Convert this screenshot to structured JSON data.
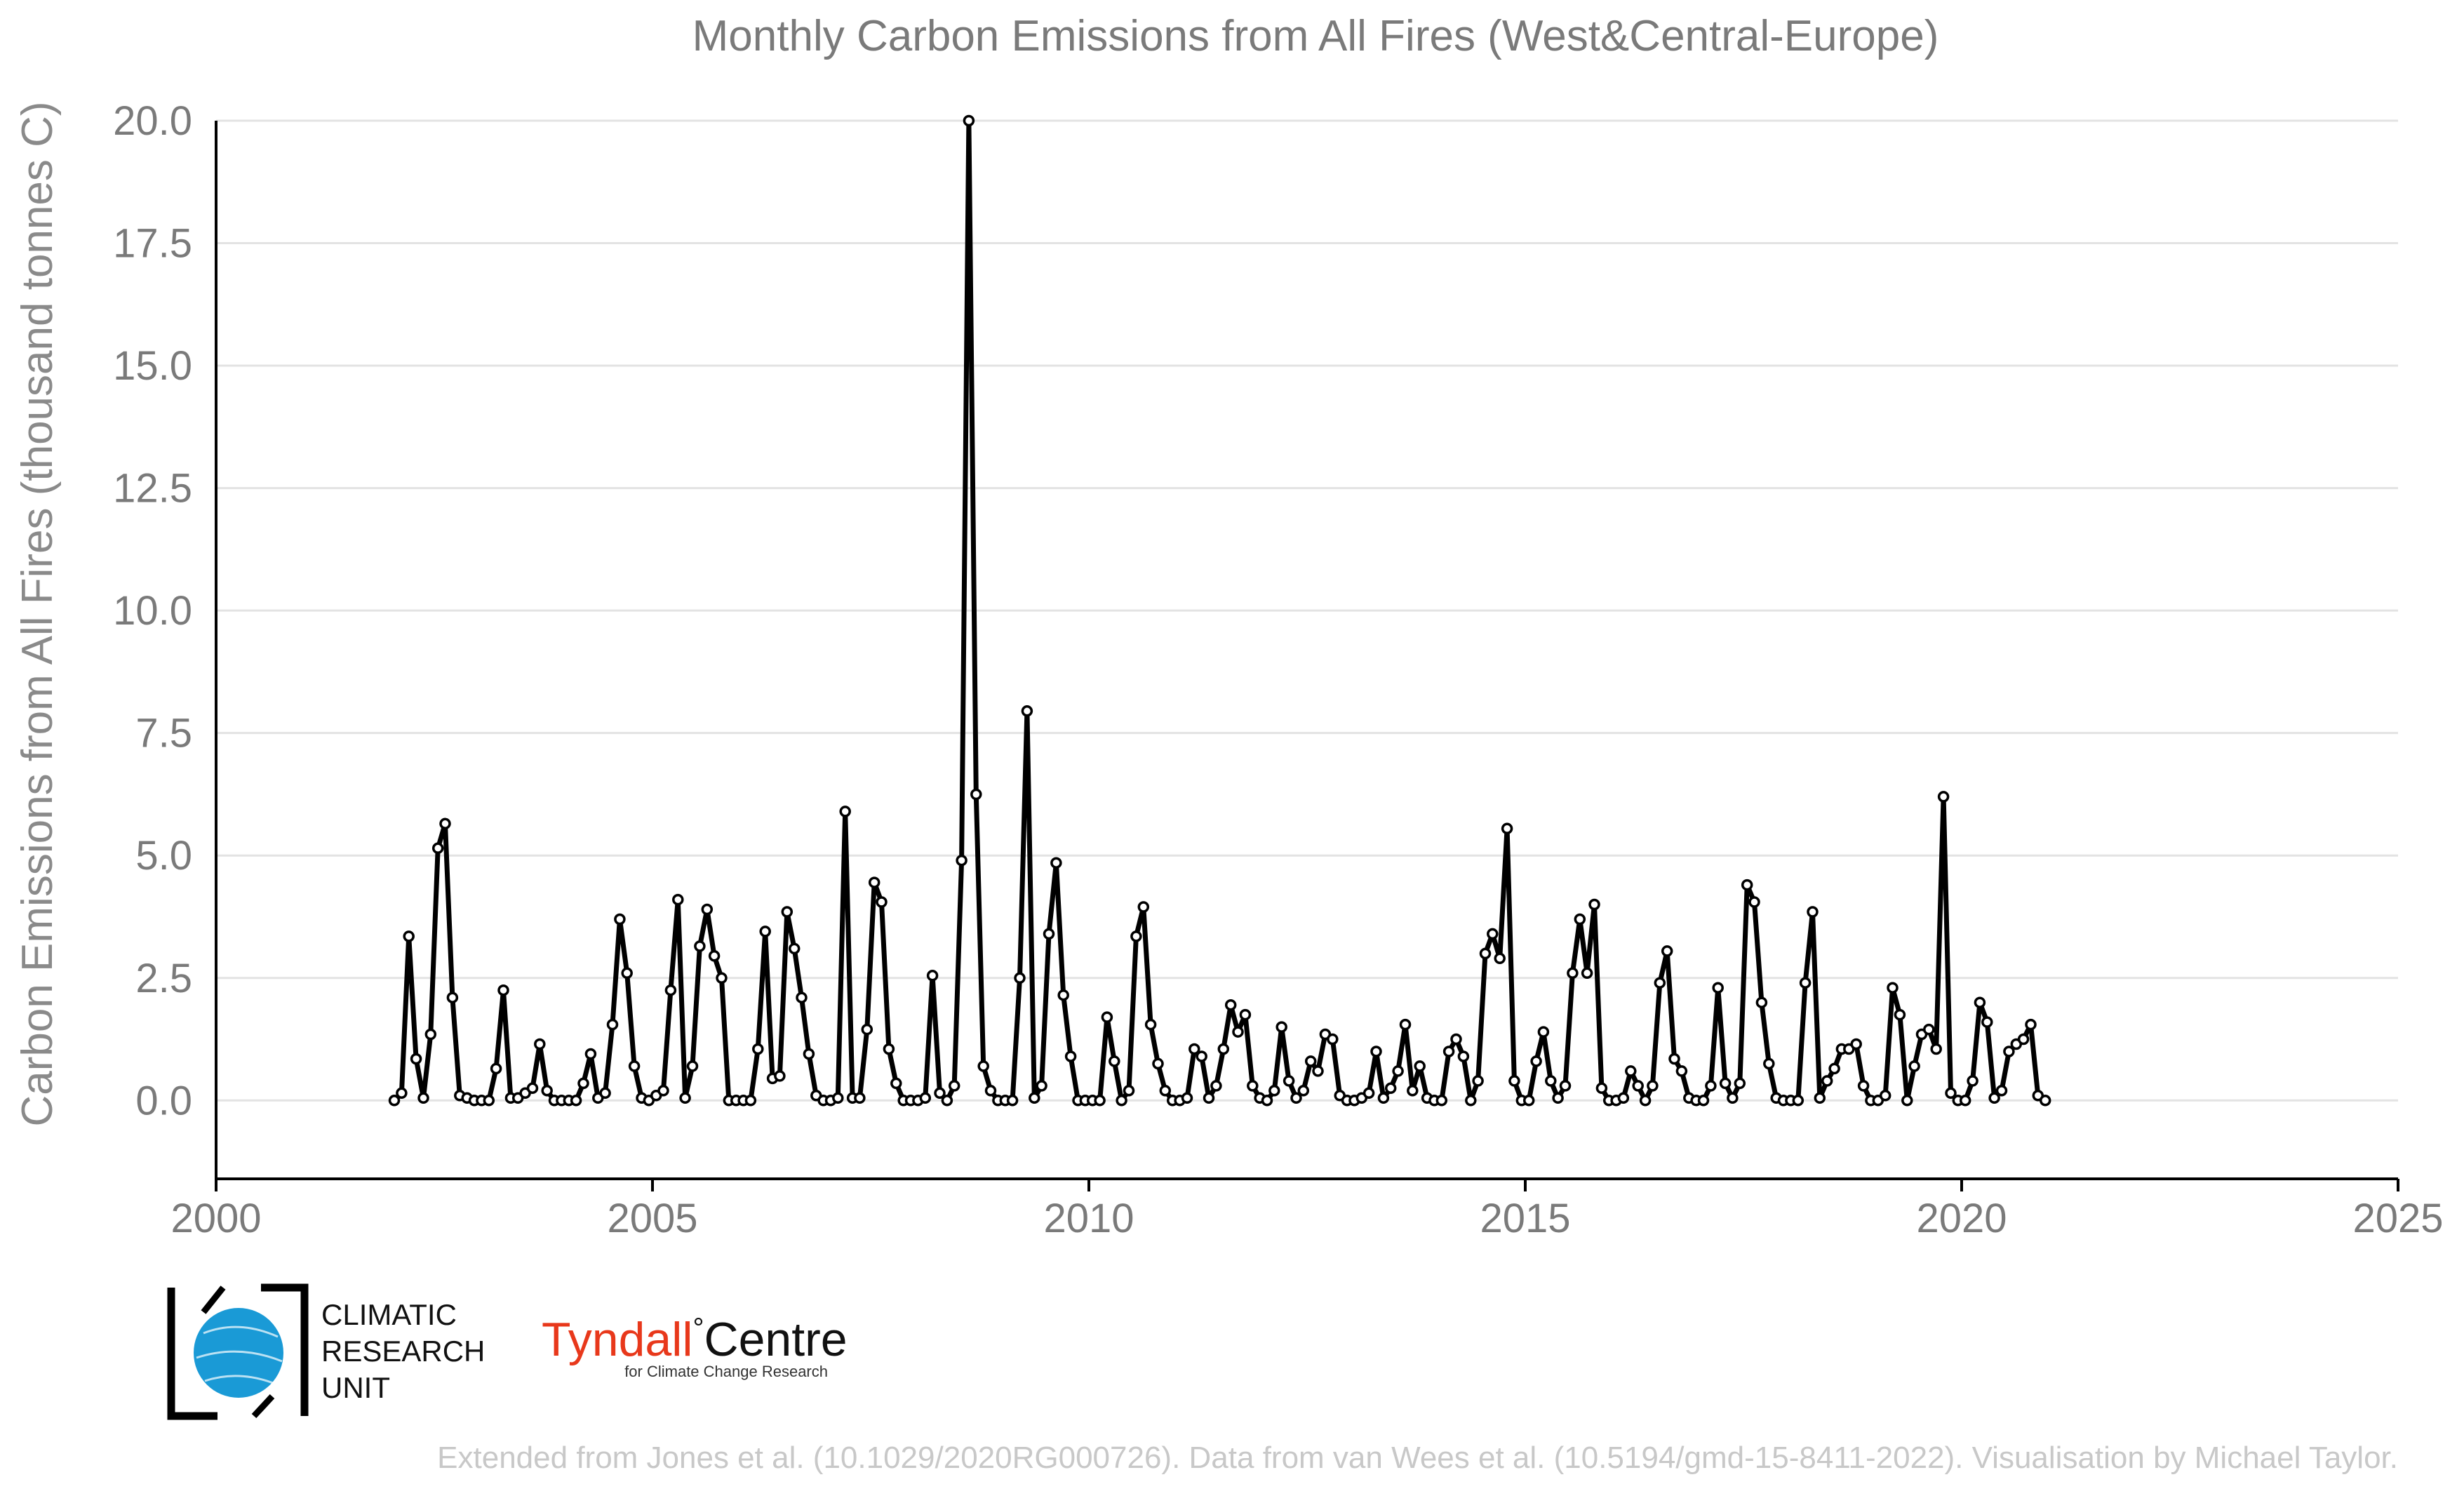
{
  "chart_data": {
    "type": "line",
    "title": "Monthly Carbon Emissions from All Fires (West&Central-Europe)",
    "xlabel": "",
    "ylabel": "Carbon Emissions from All Fires (thousand tonnes C)",
    "xlim": [
      2000,
      2025
    ],
    "ylim": [
      -1.6,
      20.0
    ],
    "x_ticks": [
      2000,
      2005,
      2010,
      2015,
      2020,
      2025
    ],
    "x_tick_labels": [
      "2000",
      "2005",
      "2010",
      "2015",
      "2020",
      "2025"
    ],
    "y_ticks": [
      0,
      2.5,
      5,
      7.5,
      10,
      12.5,
      15,
      17.5,
      20
    ],
    "y_tick_labels": [
      "0.0",
      "2.5",
      "5.0",
      "7.5",
      "10.0",
      "12.5",
      "15.0",
      "17.5",
      "20.0"
    ],
    "grid": "horizontal",
    "x_start": "2002-01",
    "x_step": "1 month",
    "series": [
      {
        "color": "#000000",
        "values": [
          0.0,
          0.15,
          3.35,
          0.85,
          0.05,
          1.35,
          5.15,
          5.65,
          2.1,
          0.1,
          0.05,
          0.0,
          0.0,
          0.0,
          0.65,
          2.25,
          0.05,
          0.05,
          0.15,
          0.25,
          1.15,
          0.2,
          0.0,
          0.0,
          0.0,
          0.0,
          0.35,
          0.95,
          0.05,
          0.15,
          1.55,
          3.7,
          2.6,
          0.7,
          0.05,
          0.0,
          0.1,
          0.2,
          2.25,
          4.1,
          0.05,
          0.7,
          3.15,
          3.9,
          2.95,
          2.5,
          0.0,
          0.0,
          0.0,
          0.0,
          1.05,
          3.45,
          0.45,
          0.5,
          3.85,
          3.1,
          2.1,
          0.95,
          0.1,
          0.0,
          0.0,
          0.05,
          5.9,
          0.05,
          0.05,
          1.45,
          4.45,
          4.05,
          1.05,
          0.35,
          0.0,
          0.0,
          0.0,
          0.05,
          2.55,
          0.15,
          0.0,
          0.3,
          4.9,
          20.0,
          6.25,
          0.7,
          0.2,
          0.0,
          0.0,
          0.0,
          2.5,
          7.95,
          0.05,
          0.3,
          3.4,
          4.85,
          2.15,
          0.9,
          0.0,
          0.0,
          0.0,
          0.0,
          1.7,
          0.8,
          0.0,
          0.2,
          3.35,
          3.95,
          1.55,
          0.75,
          0.2,
          0.0,
          0.0,
          0.05,
          1.05,
          0.9,
          0.05,
          0.3,
          1.05,
          1.95,
          1.4,
          1.75,
          0.3,
          0.05,
          0.0,
          0.2,
          1.5,
          0.4,
          0.05,
          0.2,
          0.8,
          0.6,
          1.35,
          1.25,
          0.1,
          0.0,
          0.0,
          0.05,
          0.15,
          1.0,
          0.05,
          0.25,
          0.6,
          1.55,
          0.2,
          0.7,
          0.05,
          0.0,
          0.0,
          1.0,
          1.25,
          0.9,
          0.0,
          0.4,
          3.0,
          3.4,
          2.9,
          5.55,
          0.4,
          0.0,
          0.0,
          0.8,
          1.4,
          0.4,
          0.05,
          0.3,
          2.6,
          3.7,
          2.6,
          4.0,
          0.25,
          0.0,
          0.0,
          0.05,
          0.6,
          0.3,
          0.0,
          0.3,
          2.4,
          3.05,
          0.85,
          0.6,
          0.05,
          0.0,
          0.0,
          0.3,
          2.3,
          0.35,
          0.05,
          0.35,
          4.4,
          4.05,
          2.0,
          0.75,
          0.05,
          0.0,
          0.0,
          0.0,
          2.4,
          3.85,
          0.05,
          0.4,
          0.65,
          1.05,
          1.05,
          1.15,
          0.3,
          0.0,
          0.0,
          0.1,
          2.3,
          1.75,
          0.0,
          0.7,
          1.35,
          1.45,
          1.05,
          6.2,
          0.15,
          0.0,
          0.0,
          0.4,
          2.0,
          1.6,
          0.05,
          0.2,
          1.0,
          1.15,
          1.25,
          1.55,
          0.1,
          0.0
        ]
      }
    ]
  },
  "logos": {
    "cru": [
      "CLIMATIC",
      "RESEARCH",
      "UNIT"
    ],
    "tyndall_name": "Tyndall",
    "tyndall_degree": "°",
    "tyndall_centre": "Centre",
    "tyndall_sub": "for Climate Change Research",
    "cru_color": "#1a9ad6",
    "tyndall_color": "#e8381b"
  },
  "footer": {
    "credit": "Extended from Jones et al. (10.1029/2020RG000726). Data from van Wees et al. (10.5194/gmd-15-8411-2022). Visualisation by Michael Taylor."
  }
}
